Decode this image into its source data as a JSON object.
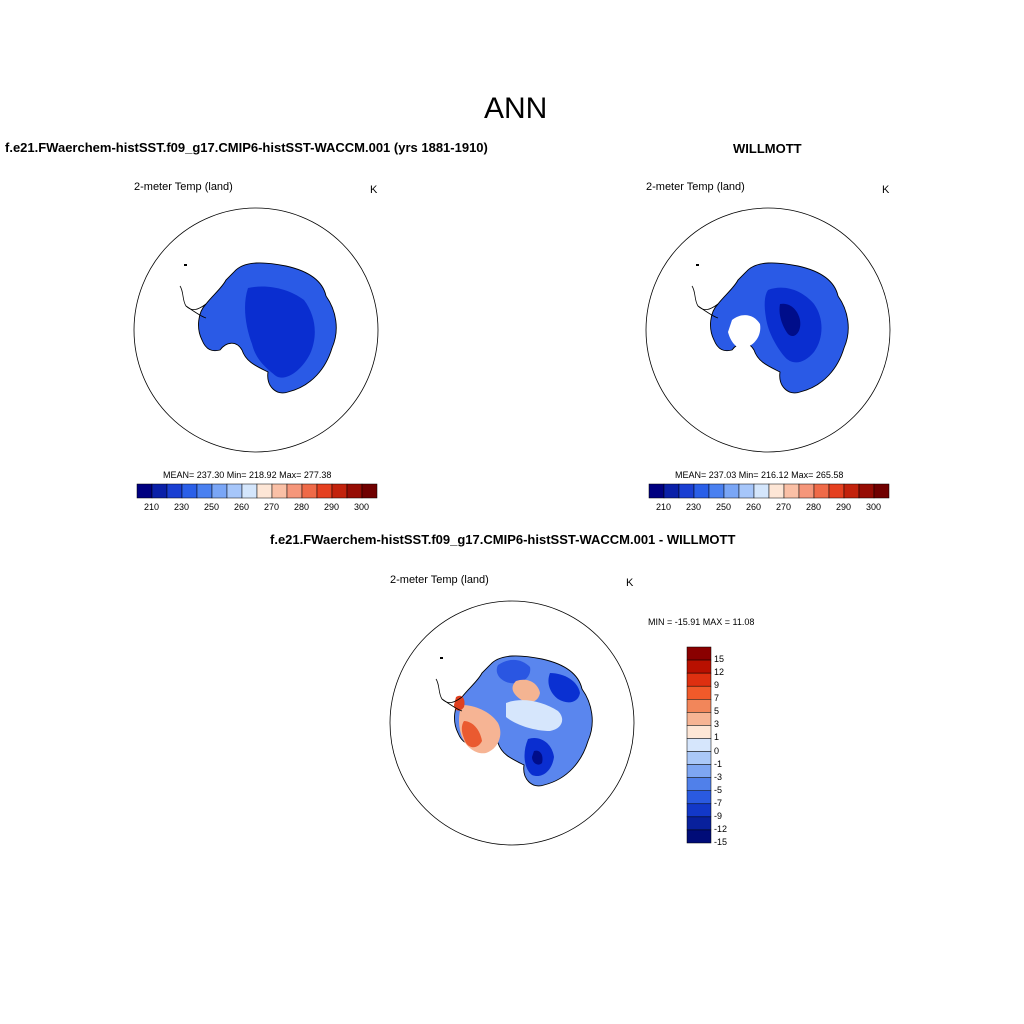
{
  "title": "ANN",
  "panels": [
    {
      "title": "f.e21.FWaerchem-histSST.f09_g17.CMIP6-histSST-WACCM.001 (yrs 1881-1910)",
      "variable": "2-meter Temp (land)",
      "units": "K",
      "stats": "MEAN= 237.30  Min= 218.92  Max= 277.38"
    },
    {
      "title": "WILLMOTT",
      "variable": "2-meter Temp (land)",
      "units": "K",
      "stats": "MEAN= 237.03  Min= 216.12  Max= 265.58"
    },
    {
      "title": "f.e21.FWaerchem-histSST.f09_g17.CMIP6-histSST-WACCM.001 - WILLMOTT",
      "variable": "2-meter Temp (land)",
      "units": "K",
      "stats": "MIN = -15.91 MAX =  11.08"
    }
  ],
  "abs_colorbar": {
    "colors": [
      "#000080",
      "#0a20a8",
      "#1a3fd2",
      "#2a5fe8",
      "#4a80f0",
      "#7aa6f6",
      "#a6c6fa",
      "#d4e6fc",
      "#fde6d6",
      "#fac0a6",
      "#f5967a",
      "#ef6a48",
      "#e54020",
      "#c2220c",
      "#960c04",
      "#700000"
    ],
    "ticks": [
      "210",
      "230",
      "250",
      "260",
      "270",
      "280",
      "290",
      "300"
    ]
  },
  "diff_colorbar": {
    "colors": [
      "#8a0000",
      "#b81000",
      "#de3010",
      "#f05a2a",
      "#f2865a",
      "#f6b494",
      "#fde6d6",
      "#d6e6fc",
      "#aac8f8",
      "#7ea6f2",
      "#5080ea",
      "#2a5ae0",
      "#1238c8",
      "#08209c",
      "#000c78"
    ],
    "ticks": [
      "15",
      "12",
      "9",
      "7",
      "5",
      "3",
      "1",
      "0",
      "-1",
      "-3",
      "-5",
      "-7",
      "-9",
      "-12",
      "-15"
    ]
  }
}
